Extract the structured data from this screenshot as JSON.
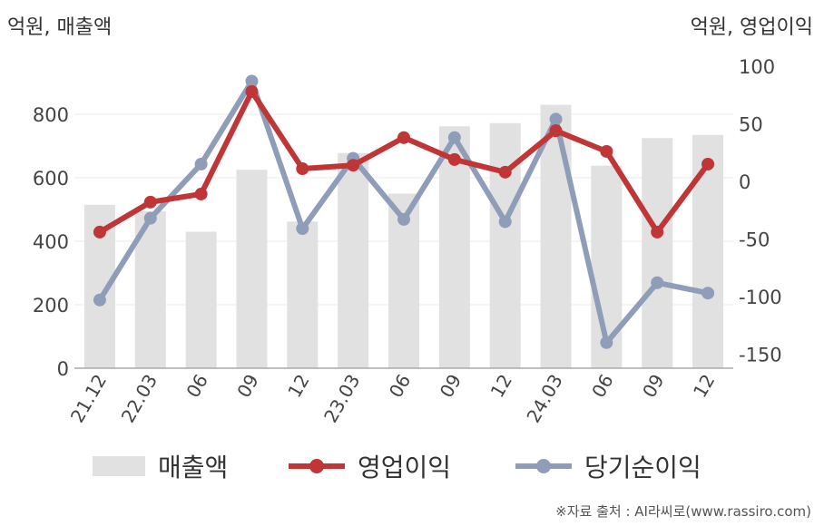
{
  "chart_data": {
    "type": "bar",
    "categories": [
      "21.12",
      "22.03",
      "06",
      "09",
      "12",
      "23.03",
      "06",
      "09",
      "12",
      "24.03",
      "06",
      "09",
      "12"
    ],
    "left_axis_label": "억원, 매출액",
    "right_axis_label": "억원, 영업이익",
    "left_ylim": [
      0,
      930
    ],
    "left_ticks": [
      0,
      200,
      400,
      600,
      800
    ],
    "right_ylim": [
      -150,
      100
    ],
    "right_ticks": [
      100,
      50,
      0,
      -50,
      -100,
      -150
    ],
    "series": [
      {
        "name": "매출액",
        "type": "bar",
        "axis": "left",
        "color": "#e1e1e1",
        "values": [
          515,
          495,
          430,
          625,
          462,
          678,
          550,
          762,
          772,
          830,
          638,
          725,
          735
        ]
      },
      {
        "name": "영업이익",
        "type": "line",
        "axis": "right",
        "color": "#c03535",
        "values": [
          -44,
          -18,
          -11,
          78,
          11,
          14,
          38,
          19,
          8,
          44,
          26,
          -44,
          15
        ]
      },
      {
        "name": "당기순이익",
        "type": "line",
        "axis": "right",
        "color": "#8f9db8",
        "values": [
          -103,
          -32,
          15,
          87,
          -41,
          20,
          -33,
          38,
          -35,
          54,
          -140,
          -88,
          -97
        ]
      }
    ]
  },
  "source": "※자료 출처 : AI라씨로(www.rassiro.com)"
}
